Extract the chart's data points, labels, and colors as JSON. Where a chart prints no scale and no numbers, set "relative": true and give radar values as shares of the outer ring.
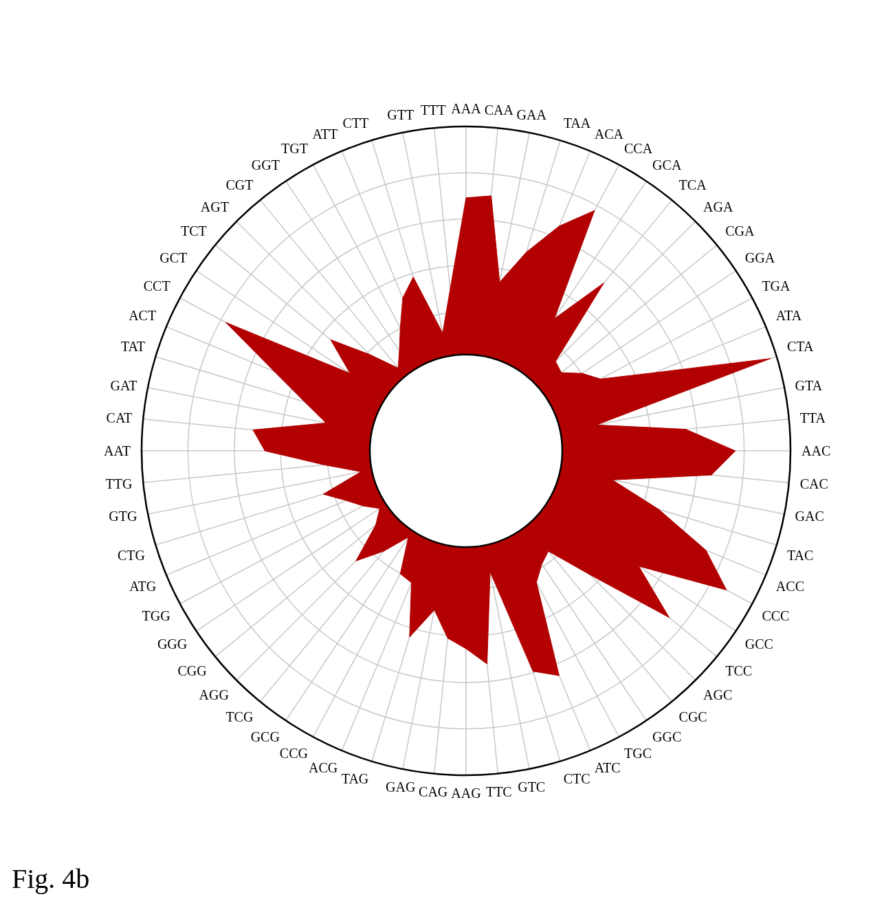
{
  "chart_data": {
    "type": "radar",
    "relative": true,
    "title": "Fig. 4b",
    "grid": true,
    "categories": [
      "AAA",
      "CAA",
      "GAA",
      "TAA",
      "ACA",
      "CCA",
      "GCA",
      "TCA",
      "AGA",
      "CGA",
      "GGA",
      "TGA",
      "ATA",
      "CTA",
      "GTA",
      "TTA",
      "AAC",
      "CAC",
      "GAC",
      "TAC",
      "ACC",
      "CCC",
      "GCC",
      "TCC",
      "AGC",
      "CGC",
      "GGC",
      "TGC",
      "ATC",
      "CTC",
      "GTC",
      "TTC",
      "AAG",
      "CAG",
      "GAG",
      "TAG",
      "ACG",
      "CCG",
      "GCG",
      "TCG",
      "AGG",
      "CGG",
      "GGG",
      "TGG",
      "ATG",
      "CTG",
      "GTG",
      "TTG",
      "AAT",
      "CAT",
      "GAT",
      "TAT",
      "ACT",
      "CCT",
      "GCT",
      "TCT",
      "AGT",
      "CGT",
      "GGT",
      "TGT",
      "ATT",
      "CTT",
      "GTT",
      "TTT"
    ],
    "series": [
      {
        "color": "#b30000",
        "values": [
          0.78,
          0.79,
          0.53,
          0.64,
          0.75,
          0.84,
          0.49,
          0.67,
          0.39,
          0.38,
          0.43,
          0.47,
          0.63,
          0.98,
          0.41,
          0.68,
          0.83,
          0.76,
          0.46,
          0.62,
          0.8,
          0.91,
          0.64,
          0.81,
          0.54,
          0.4,
          0.42,
          0.46,
          0.75,
          0.71,
          0.38,
          0.66,
          0.61,
          0.58,
          0.5,
          0.6,
          0.44,
          0.43,
          0.32,
          0.4,
          0.48,
          0.36,
          0.32,
          0.36,
          0.4,
          0.46,
          0.33,
          0.44,
          0.62,
          0.66,
          0.44,
          0.52,
          0.64,
          0.84,
          0.43,
          0.54,
          0.42,
          0.33,
          0.37,
          0.43,
          0.51,
          0.56,
          0.37,
          0.5
        ]
      }
    ]
  }
}
